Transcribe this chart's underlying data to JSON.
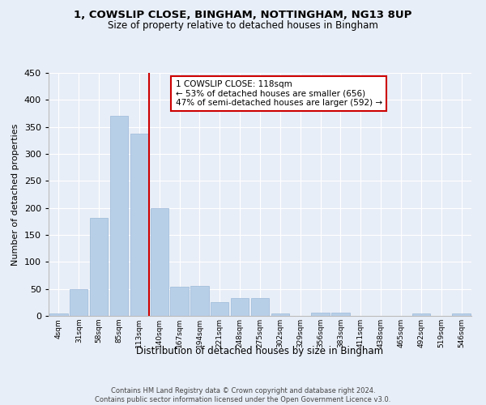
{
  "title1": "1, COWSLIP CLOSE, BINGHAM, NOTTINGHAM, NG13 8UP",
  "title2": "Size of property relative to detached houses in Bingham",
  "xlabel": "Distribution of detached houses by size in Bingham",
  "ylabel": "Number of detached properties",
  "bar_labels": [
    "4sqm",
    "31sqm",
    "58sqm",
    "85sqm",
    "113sqm",
    "140sqm",
    "167sqm",
    "194sqm",
    "221sqm",
    "248sqm",
    "275sqm",
    "302sqm",
    "329sqm",
    "356sqm",
    "383sqm",
    "411sqm",
    "438sqm",
    "465sqm",
    "492sqm",
    "519sqm",
    "546sqm"
  ],
  "bar_values": [
    5,
    50,
    181,
    370,
    338,
    199,
    54,
    55,
    26,
    33,
    33,
    5,
    0,
    6,
    6,
    0,
    0,
    0,
    5,
    0,
    4
  ],
  "bar_color": "#b8cfe8",
  "bar_edge_color": "#9ab8d8",
  "vline_color": "#cc0000",
  "vline_x": 4.5,
  "annotation_line1": "1 COWSLIP CLOSE: 118sqm",
  "annotation_line2": "← 53% of detached houses are smaller (656)",
  "annotation_line3": "47% of semi-detached houses are larger (592) →",
  "annotation_box_color": "#ffffff",
  "annotation_box_edge": "#cc0000",
  "bg_color": "#e8eef7",
  "plot_bg_color": "#e8eef7",
  "footer_text": "Contains HM Land Registry data © Crown copyright and database right 2024.\nContains public sector information licensed under the Open Government Licence v3.0.",
  "ylim": [
    0,
    450
  ],
  "yticks": [
    0,
    50,
    100,
    150,
    200,
    250,
    300,
    350,
    400,
    450
  ]
}
